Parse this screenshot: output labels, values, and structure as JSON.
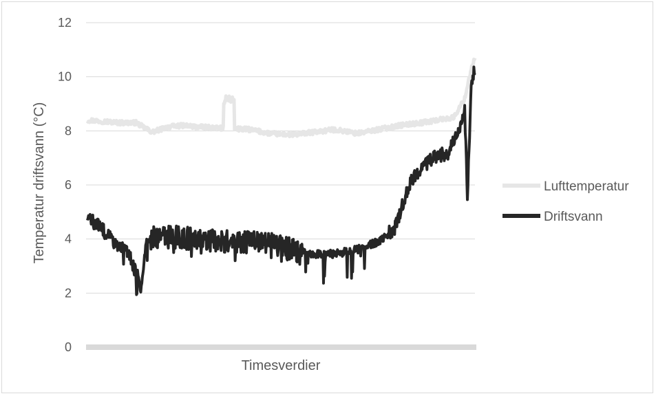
{
  "chart_data": {
    "type": "line",
    "title": "",
    "xlabel": "Timesverdier",
    "ylabel": "Temperatur driftsvann (°C)",
    "ylim": [
      0,
      12
    ],
    "yticks": [
      0,
      2,
      4,
      6,
      8,
      10,
      12
    ],
    "grid": "horizontal",
    "legend_position": "right",
    "x_count": 720,
    "series": [
      {
        "name": "Lufttemperatur",
        "color": "#e6e6e6",
        "profile": [
          [
            0,
            8.4
          ],
          [
            30,
            8.35
          ],
          [
            60,
            8.3
          ],
          [
            90,
            8.3
          ],
          [
            120,
            7.95
          ],
          [
            150,
            8.15
          ],
          [
            180,
            8.2
          ],
          [
            200,
            8.15
          ],
          [
            250,
            8.1
          ],
          [
            300,
            8.05
          ],
          [
            340,
            7.9
          ],
          [
            380,
            7.85
          ],
          [
            420,
            7.95
          ],
          [
            460,
            8.05
          ],
          [
            500,
            7.9
          ],
          [
            540,
            8.05
          ],
          [
            580,
            8.2
          ],
          [
            620,
            8.3
          ],
          [
            680,
            8.5
          ],
          [
            700,
            9.2
          ],
          [
            712,
            10.3
          ],
          [
            719,
            10.7
          ]
        ],
        "spike": {
          "from": 253,
          "to": 272,
          "value": 9.3
        },
        "noise": 0.28
      },
      {
        "name": "Driftsvann",
        "color": "#262626",
        "profile": [
          [
            0,
            4.8
          ],
          [
            25,
            4.4
          ],
          [
            50,
            3.9
          ],
          [
            75,
            3.5
          ],
          [
            95,
            2.5
          ],
          [
            100,
            2.1
          ],
          [
            110,
            4.1
          ],
          [
            140,
            4.1
          ],
          [
            200,
            4.0
          ],
          [
            260,
            3.9
          ],
          [
            300,
            3.9
          ],
          [
            340,
            3.8
          ],
          [
            380,
            3.6
          ],
          [
            420,
            3.45
          ],
          [
            460,
            3.45
          ],
          [
            500,
            3.6
          ],
          [
            540,
            3.9
          ],
          [
            570,
            4.4
          ],
          [
            600,
            6.2
          ],
          [
            620,
            6.6
          ],
          [
            640,
            7.0
          ],
          [
            670,
            7.2
          ],
          [
            690,
            8.0
          ],
          [
            700,
            8.8
          ],
          [
            705,
            5.4
          ],
          [
            712,
            9.8
          ],
          [
            719,
            10.3
          ]
        ],
        "spike": null,
        "noise": 0.85
      }
    ]
  }
}
